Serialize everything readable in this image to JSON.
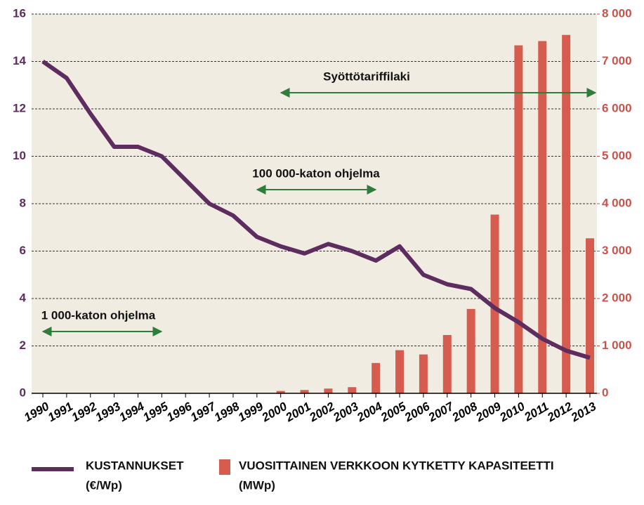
{
  "chart_data": {
    "type": "bar-line",
    "categories": [
      "1990",
      "1991",
      "1992",
      "1993",
      "1994",
      "1995",
      "1996",
      "1997",
      "1998",
      "1999",
      "2000",
      "2001",
      "2002",
      "2003",
      "2004",
      "2005",
      "2006",
      "2007",
      "2008",
      "2009",
      "2010",
      "2011",
      "2012",
      "2013"
    ],
    "series": [
      {
        "name": "KUSTANNUKSET",
        "unit": "(€/Wp)",
        "type": "line",
        "color": "#5c2d5e",
        "axis": "y",
        "values": [
          14.0,
          13.3,
          11.8,
          10.4,
          10.4,
          10.0,
          9.0,
          8.0,
          7.5,
          6.6,
          6.2,
          5.9,
          6.3,
          6.0,
          5.6,
          6.2,
          5.0,
          4.6,
          4.4,
          3.6,
          3.0,
          2.3,
          1.8,
          1.5
        ]
      },
      {
        "name": "VUOSITTAINEN VERKKOON KYTKETTY KAPASITEETTI",
        "unit": "(MWp)",
        "type": "bar",
        "color": "#d65c4f",
        "axis": "y2",
        "values": [
          0,
          0,
          0,
          0,
          0,
          0,
          0,
          0,
          0,
          0,
          50,
          70,
          100,
          130,
          640,
          910,
          820,
          1230,
          1780,
          3770,
          7340,
          7430,
          7560,
          3270
        ]
      }
    ],
    "ylim": [
      0,
      16
    ],
    "yticks": [
      0,
      2,
      4,
      6,
      8,
      10,
      12,
      14,
      16
    ],
    "y2lim": [
      0,
      8000
    ],
    "y2ticks": [
      0,
      {
        "value": 1000,
        "label": "1 000"
      },
      {
        "value": 2000,
        "label": "2 000"
      },
      {
        "value": 3000,
        "label": "3 000"
      },
      {
        "value": 4000,
        "label": "4 000"
      },
      {
        "value": 5000,
        "label": "5 000"
      },
      {
        "value": 6000,
        "label": "6 000"
      },
      {
        "value": 7000,
        "label": "7 000"
      },
      {
        "value": 8000,
        "label": "8 000"
      }
    ],
    "grid": true,
    "annotations": [
      "1 000-katon ohjelma",
      "100 000-katon ohjelma",
      "Syöttötariffilaki"
    ]
  }
}
